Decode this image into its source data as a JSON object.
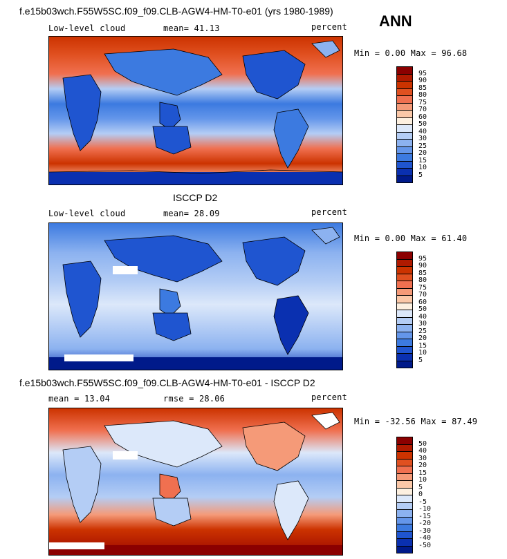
{
  "header": {
    "case_title": "f.e15b03wch.F55W5SC.f09_f09.CLB-AGW4-HM-T0-e01 (yrs 1980-1989)",
    "season": "ANN"
  },
  "panels": [
    {
      "id": "model",
      "title": "",
      "field": "Low-level cloud",
      "stat": "mean=  41.13",
      "units": "percent",
      "range": "Min =   0.00 Max =  96.68",
      "colorbar": {
        "labels": [
          "95",
          "90",
          "85",
          "80",
          "75",
          "70",
          "60",
          "50",
          "40",
          "30",
          "25",
          "20",
          "15",
          "10",
          "5"
        ],
        "colors": [
          "#8b0000",
          "#b01a00",
          "#cc3300",
          "#e05020",
          "#f07050",
          "#f59a78",
          "#fbc8a8",
          "#fdf0e0",
          "#dce8fa",
          "#b4cdf5",
          "#8cb2f0",
          "#6496ea",
          "#3c7ae0",
          "#1f55d0",
          "#0a30b0",
          "#001a8a"
        ]
      }
    },
    {
      "id": "obs",
      "title": "ISCCP D2",
      "field": "Low-level cloud",
      "stat": "mean=  28.09",
      "units": "percent",
      "range": "Min =   0.00 Max =  61.40",
      "colorbar": {
        "labels": [
          "95",
          "90",
          "85",
          "80",
          "75",
          "70",
          "60",
          "50",
          "40",
          "30",
          "25",
          "20",
          "15",
          "10",
          "5"
        ],
        "colors": [
          "#8b0000",
          "#b01a00",
          "#cc3300",
          "#e05020",
          "#f07050",
          "#f59a78",
          "#fbc8a8",
          "#fdf0e0",
          "#dce8fa",
          "#b4cdf5",
          "#8cb2f0",
          "#6496ea",
          "#3c7ae0",
          "#1f55d0",
          "#0a30b0",
          "#001a8a"
        ]
      }
    },
    {
      "id": "diff",
      "title": "f.e15b03wch.F55W5SC.f09_f09.CLB-AGW4-HM-T0-e01 - ISCCP D2",
      "field": "mean =  13.04",
      "stat": "rmse =  28.06",
      "units": "percent",
      "range": "Min = -32.56 Max =  87.49",
      "colorbar": {
        "labels": [
          "50",
          "40",
          "30",
          "20",
          "15",
          "10",
          "5",
          "0",
          "-5",
          "-10",
          "-15",
          "-20",
          "-30",
          "-40",
          "-50"
        ],
        "colors": [
          "#8b0000",
          "#b01a00",
          "#cc3300",
          "#e05020",
          "#f07050",
          "#f59a78",
          "#fbc8a8",
          "#fdf0e0",
          "#dce8fa",
          "#b4cdf5",
          "#8cb2f0",
          "#6496ea",
          "#3c7ae0",
          "#1f55d0",
          "#0a30b0",
          "#001a8a"
        ]
      }
    }
  ]
}
